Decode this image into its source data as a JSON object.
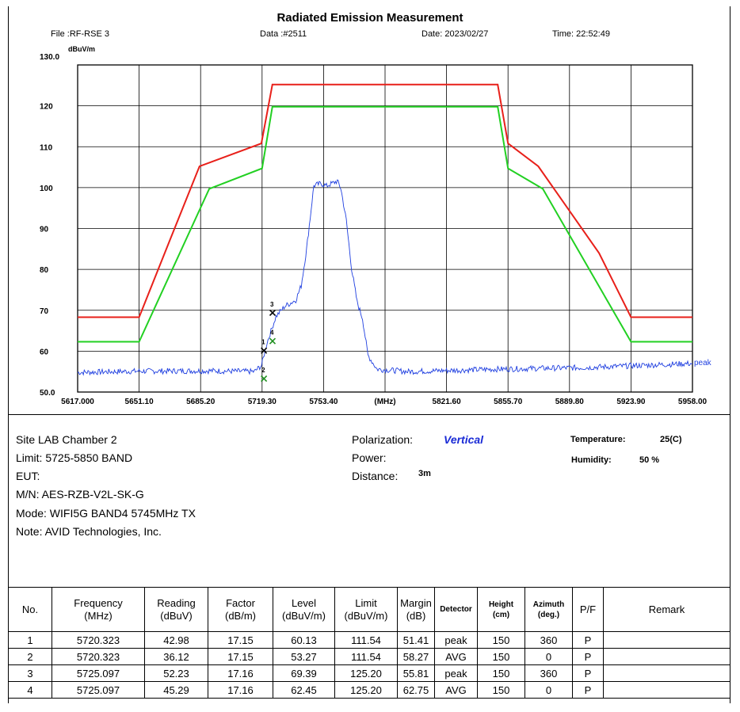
{
  "chart_data": {
    "type": "line",
    "title": "Radiated Emission Measurement",
    "ylabel": "dBuV/m",
    "xlabel": "(MHz)",
    "ylim": [
      50,
      130
    ],
    "xlim": [
      5617.0,
      5958.0
    ],
    "y_ticks": [
      "130.0",
      "120",
      "110",
      "100",
      "90",
      "80",
      "70",
      "60",
      "50.0"
    ],
    "y_tick_values": [
      130,
      120,
      110,
      100,
      90,
      80,
      70,
      60,
      50
    ],
    "x_ticks": [
      "5617.000",
      "5651.10",
      "5685.20",
      "5719.30",
      "5753.40",
      "(MHz)",
      "5821.60",
      "5855.70",
      "5889.80",
      "5923.90",
      "5958.00"
    ],
    "x_tick_values": [
      5617.0,
      5651.1,
      5685.2,
      5719.3,
      5753.4,
      5787.5,
      5821.6,
      5855.7,
      5889.8,
      5923.9,
      5958.0
    ],
    "grid": true,
    "series": [
      {
        "color": "#e8201a",
        "x": [
          5617.0,
          5651.1,
          5668.0,
          5684.6,
          5718.9,
          5725.0,
          5850.0,
          5855.7,
          5872.5,
          5906.2,
          5923.9,
          5958.0
        ],
        "y": [
          68.3,
          68.3,
          87.0,
          105.2,
          110.8,
          125.2,
          125.2,
          110.8,
          105.2,
          84.0,
          68.3,
          68.3
        ]
      },
      {
        "color": "#22d022",
        "x": [
          5617.0,
          5651.1,
          5690.0,
          5719.3,
          5725.0,
          5850.0,
          5855.7,
          5875.0,
          5923.9,
          5958.0
        ],
        "y": [
          62.3,
          62.3,
          99.7,
          104.7,
          119.8,
          119.8,
          104.7,
          99.7,
          62.3,
          62.3
        ]
      },
      {
        "name": "peak",
        "color": "#1f3fe0",
        "x": [
          5617.0,
          5650.0,
          5690.0,
          5715.0,
          5719.0,
          5722.0,
          5727.0,
          5732.0,
          5738.0,
          5741.0,
          5744.0,
          5748.0,
          5752.0,
          5755.0,
          5758.0,
          5761.0,
          5763.0,
          5766.0,
          5769.0,
          5772.0,
          5775.0,
          5778.0,
          5783.0,
          5800.0,
          5850.0,
          5900.0,
          5958.0
        ],
        "y": [
          54.8,
          55.1,
          55.2,
          55.0,
          56.5,
          62.0,
          68.5,
          71.0,
          72.5,
          76.0,
          85.0,
          100.5,
          101.0,
          100.4,
          101.0,
          101.6,
          99.8,
          92.0,
          80.0,
          72.0,
          68.0,
          59.0,
          55.6,
          55.0,
          55.6,
          56.0,
          57.0
        ]
      }
    ],
    "markers": {
      "black_x": [
        5720.323,
        5725.097
      ],
      "black_y": [
        60.13,
        69.39
      ],
      "green_x": [
        5720.323,
        5725.097
      ],
      "green_y": [
        53.27,
        62.45
      ],
      "labels": [
        "1",
        "2",
        "3",
        "4"
      ]
    }
  },
  "header": {
    "file": "File :RF-RSE 3",
    "data": "Data :#2511",
    "date": "Date: 2023/02/27",
    "time": "Time: 22:52:49"
  },
  "info": {
    "site": "Site  LAB Chamber 2",
    "limit": "Limit:  5725-5850 BAND",
    "eut": "EUT:",
    "mn": "M/N:  AES-RZB-V2L-SK-G",
    "mode": "Mode:  WIFI5G BAND4 5745MHz TX",
    "note": "Note: AVID Technologies, Inc.",
    "polarization_label": "Polarization:",
    "polarization_value": "Vertical",
    "power": "Power:",
    "distance_label": "Distance:",
    "distance_value": "3m",
    "temperature_label": "Temperature:",
    "temperature_value": "25(C)",
    "humidity_label": "Humidity:",
    "humidity_value": "50 %"
  },
  "table": {
    "headers": [
      [
        "No.",
        ""
      ],
      [
        "Frequency",
        "(MHz)"
      ],
      [
        "Reading",
        "(dBuV)"
      ],
      [
        "Factor",
        "(dB/m)"
      ],
      [
        "Level",
        "(dBuV/m)"
      ],
      [
        "Limit",
        "(dBuV/m)"
      ],
      [
        "Margin",
        "(dB)"
      ],
      [
        "Detector",
        ""
      ],
      [
        "Height",
        "(cm)"
      ],
      [
        "Azimuth",
        "(deg.)"
      ],
      [
        "P/F",
        ""
      ],
      [
        "Remark",
        ""
      ]
    ],
    "rows": [
      [
        "1",
        "5720.323",
        "42.98",
        "17.15",
        "60.13",
        "111.54",
        "51.41",
        "peak",
        "150",
        "360",
        "P",
        ""
      ],
      [
        "2",
        "5720.323",
        "36.12",
        "17.15",
        "53.27",
        "111.54",
        "58.27",
        "AVG",
        "150",
        "0",
        "P",
        ""
      ],
      [
        "3",
        "5725.097",
        "52.23",
        "17.16",
        "69.39",
        "125.20",
        "55.81",
        "peak",
        "150",
        "360",
        "P",
        ""
      ],
      [
        "4",
        "5725.097",
        "45.29",
        "17.16",
        "62.45",
        "125.20",
        "62.75",
        "AVG",
        "150",
        "0",
        "P",
        ""
      ]
    ]
  }
}
